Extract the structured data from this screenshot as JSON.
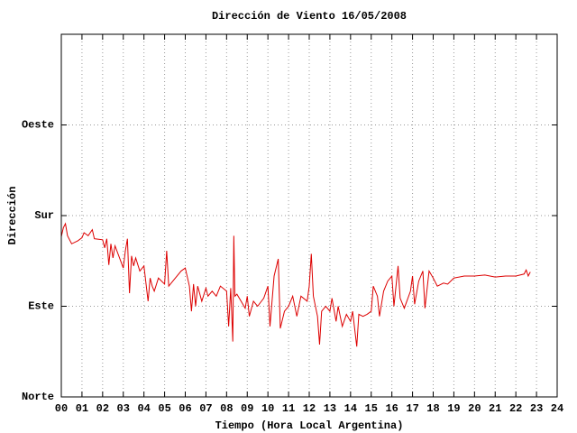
{
  "chart_data": {
    "type": "line",
    "title": "Dirección de Viento 16/05/2008",
    "xlabel": "Tiempo (Hora Local Argentina)",
    "ylabel": "Dirección",
    "color": "#dd0000",
    "grid": true,
    "xlim": [
      0,
      24
    ],
    "ylim": [
      0,
      360
    ],
    "xticks": [
      {
        "value": 0,
        "label": "00"
      },
      {
        "value": 1,
        "label": "01"
      },
      {
        "value": 2,
        "label": "02"
      },
      {
        "value": 3,
        "label": "03"
      },
      {
        "value": 4,
        "label": "04"
      },
      {
        "value": 5,
        "label": "05"
      },
      {
        "value": 6,
        "label": "06"
      },
      {
        "value": 7,
        "label": "07"
      },
      {
        "value": 8,
        "label": "08"
      },
      {
        "value": 9,
        "label": "09"
      },
      10,
      11,
      12,
      13,
      14,
      15,
      16,
      17,
      18,
      19,
      20,
      21,
      22,
      23,
      24
    ],
    "yticks": [
      {
        "value": 0,
        "label": "Norte"
      },
      {
        "value": 90,
        "label": "Este"
      },
      {
        "value": 180,
        "label": "Sur"
      },
      {
        "value": 270,
        "label": "Oeste"
      }
    ],
    "x": [
      0.0,
      0.1,
      0.2,
      0.3,
      0.5,
      0.8,
      1.0,
      1.1,
      1.3,
      1.5,
      1.6,
      2.0,
      2.1,
      2.2,
      2.3,
      2.4,
      2.5,
      2.6,
      2.8,
      3.0,
      3.1,
      3.2,
      3.3,
      3.4,
      3.5,
      3.6,
      3.8,
      4.0,
      4.2,
      4.3,
      4.4,
      4.5,
      4.7,
      5.0,
      5.1,
      5.2,
      5.4,
      5.8,
      6.0,
      6.2,
      6.3,
      6.4,
      6.5,
      6.6,
      6.8,
      7.0,
      7.1,
      7.3,
      7.5,
      7.7,
      8.0,
      8.1,
      8.2,
      8.3,
      8.35,
      8.4,
      8.5,
      8.7,
      8.9,
      9.0,
      9.1,
      9.3,
      9.5,
      9.8,
      10.0,
      10.1,
      10.3,
      10.5,
      10.6,
      10.8,
      11.0,
      11.2,
      11.4,
      11.6,
      11.9,
      12.0,
      12.1,
      12.2,
      12.4,
      12.5,
      12.6,
      12.8,
      13.0,
      13.1,
      13.3,
      13.4,
      13.6,
      13.8,
      14.0,
      14.1,
      14.3,
      14.4,
      14.6,
      14.8,
      15.0,
      15.1,
      15.3,
      15.4,
      15.6,
      15.8,
      16.0,
      16.1,
      16.3,
      16.4,
      16.6,
      16.9,
      17.0,
      17.1,
      17.3,
      17.5,
      17.6,
      17.8,
      18.0,
      18.2,
      18.5,
      18.7,
      19.0,
      19.5,
      20.0,
      20.5,
      21.0,
      21.5,
      22.0,
      22.4,
      22.5,
      22.6,
      22.7
    ],
    "values": [
      159,
      168,
      172,
      160,
      152,
      155,
      158,
      163,
      160,
      166,
      157,
      156,
      148,
      157,
      131,
      152,
      138,
      150,
      139,
      128,
      145,
      157,
      103,
      140,
      130,
      138,
      125,
      130,
      95,
      118,
      110,
      105,
      118,
      112,
      145,
      110,
      115,
      125,
      128,
      110,
      85,
      112,
      90,
      110,
      95,
      108,
      100,
      105,
      100,
      110,
      105,
      70,
      108,
      55,
      160,
      100,
      102,
      95,
      88,
      100,
      80,
      95,
      90,
      98,
      110,
      70,
      120,
      137,
      68,
      85,
      90,
      100,
      80,
      100,
      95,
      110,
      142,
      100,
      80,
      52,
      85,
      90,
      85,
      98,
      75,
      90,
      70,
      82,
      75,
      85,
      50,
      82,
      80,
      82,
      85,
      110,
      100,
      80,
      105,
      115,
      120,
      90,
      130,
      98,
      88,
      105,
      120,
      92,
      115,
      125,
      88,
      125,
      118,
      110,
      113,
      112,
      118,
      120,
      120,
      121,
      119,
      120,
      120,
      122,
      126,
      120,
      124
    ]
  }
}
